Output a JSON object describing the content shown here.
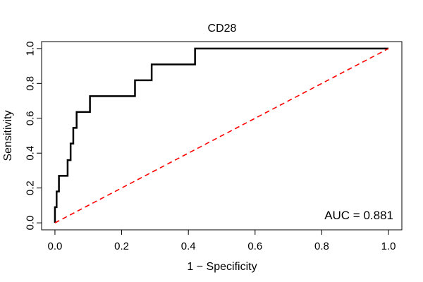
{
  "chart_data": {
    "type": "line",
    "title": "CD28",
    "xlabel": "1 − Specificity",
    "ylabel": "Sensitivity",
    "xlim": [
      -0.04,
      1.04
    ],
    "ylim": [
      -0.04,
      1.04
    ],
    "xticks": [
      0.0,
      0.2,
      0.4,
      0.6,
      0.8,
      1.0
    ],
    "yticks": [
      0.0,
      0.2,
      0.4,
      0.6,
      0.8,
      1.0
    ],
    "xtick_labels": [
      "0.0",
      "0.2",
      "0.4",
      "0.6",
      "0.8",
      "1.0"
    ],
    "ytick_labels": [
      "0.0",
      "0.2",
      "0.4",
      "0.6",
      "0.8",
      "1.0"
    ],
    "grid": false,
    "annotation": "AUC = 0.881",
    "series": [
      {
        "color": "#000000",
        "x": [
          0.0,
          0.0,
          0.005,
          0.005,
          0.012,
          0.012,
          0.018,
          0.018,
          0.038,
          0.038,
          0.047,
          0.047,
          0.055,
          0.055,
          0.065,
          0.065,
          0.105,
          0.105,
          0.24,
          0.24,
          0.29,
          0.29,
          0.42,
          0.42,
          1.0
        ],
        "y": [
          0.0,
          0.09,
          0.09,
          0.18,
          0.18,
          0.27,
          0.27,
          0.27,
          0.27,
          0.36,
          0.36,
          0.455,
          0.455,
          0.545,
          0.545,
          0.636,
          0.636,
          0.727,
          0.727,
          0.818,
          0.818,
          0.909,
          0.909,
          1.0,
          1.0
        ]
      },
      {
        "color": "#ff0000",
        "style": "dashed",
        "x": [
          0.0,
          1.0
        ],
        "y": [
          0.0,
          1.0
        ]
      }
    ]
  }
}
